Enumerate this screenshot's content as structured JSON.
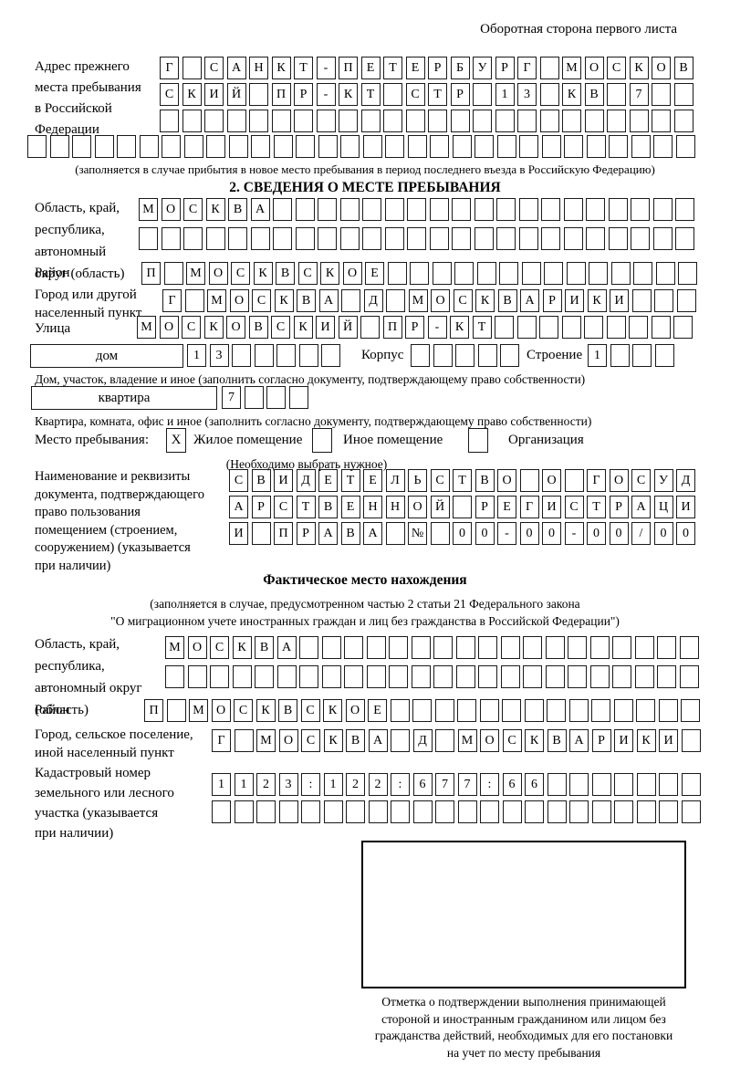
{
  "header": {
    "back_side_note": "Оборотная сторона первого листа"
  },
  "prev_address": {
    "label_lines": [
      "Адрес прежнего",
      "места пребывания",
      "в Российской",
      "Федерации"
    ],
    "rows": [
      {
        "len": 24,
        "text": "Г САНКТ-ПЕТЕРБУРГ МОСКОВ"
      },
      {
        "len": 24,
        "text": "СКИЙ ПР-КТ СТР 13 КВ 7"
      },
      {
        "len": 24,
        "text": ""
      },
      {
        "len": 30,
        "text": ""
      }
    ],
    "note": "(заполняется в случае прибытия в новое место пребывания в период последнего въезда в Российскую Федерацию)"
  },
  "section2": {
    "title": "2. СВЕДЕНИЯ О МЕСТЕ ПРЕБЫВАНИЯ",
    "region": {
      "label_lines": [
        "Область, край,",
        "республика,",
        "автономный",
        "округ (область)"
      ],
      "rows": [
        {
          "len": 25,
          "text": "МОСКВА"
        },
        {
          "len": 25,
          "text": ""
        }
      ]
    },
    "district": {
      "label": "Район",
      "row": {
        "len": 25,
        "text": "П МОСКВСКОЕ"
      }
    },
    "city": {
      "label_lines": [
        "Город или другой",
        "населенный пункт"
      ],
      "row": {
        "len": 24,
        "text": "Г МОСКВА Д МОСКВАРИКИ"
      }
    },
    "street": {
      "label": "Улица",
      "row": {
        "len": 25,
        "text": "МОСКОВСКИЙ ПР-КТ"
      }
    },
    "house": {
      "box_label": "дом",
      "row": {
        "len": 7,
        "text": "13"
      },
      "korpus_label": "Корпус",
      "korpus_row": {
        "len": 5,
        "text": ""
      },
      "stroenie_label": "Строение",
      "stroenie_row": {
        "len": 4,
        "text": "1"
      },
      "note": "Дом, участок, владение и иное (заполнить согласно документу, подтверждающему право собственности)"
    },
    "apartment": {
      "box_label": "квартира",
      "row": {
        "len": 4,
        "text": "7"
      },
      "note": "Квартира, комната, офис и иное (заполнить согласно документу, подтверждающему право собственности)"
    },
    "stay_type": {
      "label": "Место пребывания:",
      "options": [
        {
          "label": "Жилое помещение",
          "checked": "X"
        },
        {
          "label": "Иное помещение",
          "checked": ""
        },
        {
          "label": "Организация",
          "checked": ""
        }
      ],
      "note": "(Необходимо выбрать нужное)"
    },
    "document": {
      "label_lines": [
        "Наименование и реквизиты",
        "документа, подтверждающего",
        "право пользования",
        "помещением (строением,",
        "сооружением) (указывается",
        "при наличии)"
      ],
      "rows": [
        {
          "len": 21,
          "text": "СВИДЕТЕЛЬСТВО О ГОСУД"
        },
        {
          "len": 21,
          "text": "АРСТВЕННОЙ РЕГИСТРАЦИ"
        },
        {
          "len": 21,
          "text": "И ПРАВА № 00-00-00/000"
        }
      ]
    }
  },
  "actual_location": {
    "title": "Фактическое место нахождения",
    "note_lines": [
      "(заполняется в случае, предусмотренном частью 2 статьи 21 Федерального закона",
      "\"О миграционном учете иностранных граждан и лиц без гражданства в Российской Федерации\")"
    ],
    "region": {
      "label_lines": [
        "Область, край,",
        "республика,",
        "автономный округ",
        "(область)"
      ],
      "rows": [
        {
          "len": 24,
          "text": "МОСКВА"
        },
        {
          "len": 24,
          "text": ""
        }
      ]
    },
    "district": {
      "label": "Район",
      "row": {
        "len": 25,
        "text": "П МОСКВСКОЕ"
      }
    },
    "city": {
      "label_lines": [
        "Город, сельское поселение,",
        "иной населенный пункт"
      ],
      "row": {
        "len": 22,
        "text": "Г МОСКВА Д МОСКВАРИКИ"
      }
    },
    "cadastral": {
      "label_lines": [
        "Кадастровый номер",
        "земельного или лесного",
        "участка (указывается",
        "при наличии)"
      ],
      "rows": [
        {
          "len": 22,
          "text": "1123:122:677:66"
        },
        {
          "len": 22,
          "text": ""
        }
      ]
    },
    "stamp_caption_lines": [
      "Отметка о подтверждении выполнения принимающей",
      "стороной и иностранным гражданином или лицом без",
      "гражданства действий, необходимых для его постановки",
      "на учет по месту пребывания"
    ]
  }
}
